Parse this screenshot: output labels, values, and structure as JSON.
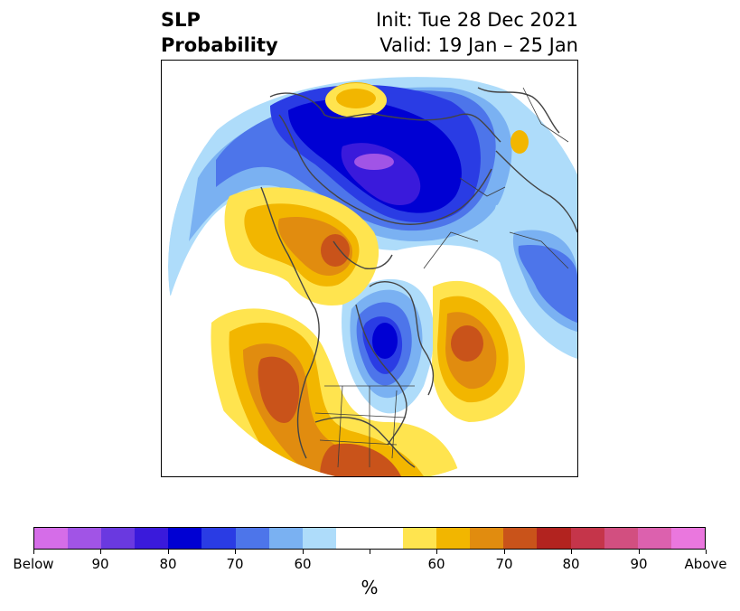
{
  "title": {
    "left_line1": "SLP",
    "left_line2": "Probability",
    "right_line1": "Init: Tue 28 Dec 2021",
    "right_line2": "Valid: 19 Jan – 25 Jan"
  },
  "colorbar": {
    "colors": [
      "#d56de8",
      "#a154e6",
      "#6a39e0",
      "#3a1adb",
      "#0000d3",
      "#2a3ce4",
      "#4d75ea",
      "#7ab1f2",
      "#aedcfa",
      "#ffffff",
      "#ffffff",
      "#ffe44f",
      "#f2b600",
      "#e18c0f",
      "#c9531a",
      "#b2231f",
      "#c5354a",
      "#d24f80",
      "#dc61ae",
      "#ea77de"
    ],
    "tick_labels": [
      "Below",
      "90",
      "80",
      "70",
      "60",
      "",
      "60",
      "70",
      "80",
      "90",
      "Above"
    ],
    "unit": "%"
  },
  "map_colors": {
    "blue_light": "#aedcfa",
    "blue_mid": "#7ab1f2",
    "blue_med": "#4d75ea",
    "blue_strong": "#2a3ce4",
    "blue_deep": "#0000d3",
    "purple": "#3a1adb",
    "violet": "#a154e6",
    "yellow": "#ffe44f",
    "gold": "#f2b600",
    "orange": "#e18c0f",
    "rust": "#c9531a",
    "coast": "#444444",
    "border": "#3c3c3c"
  }
}
